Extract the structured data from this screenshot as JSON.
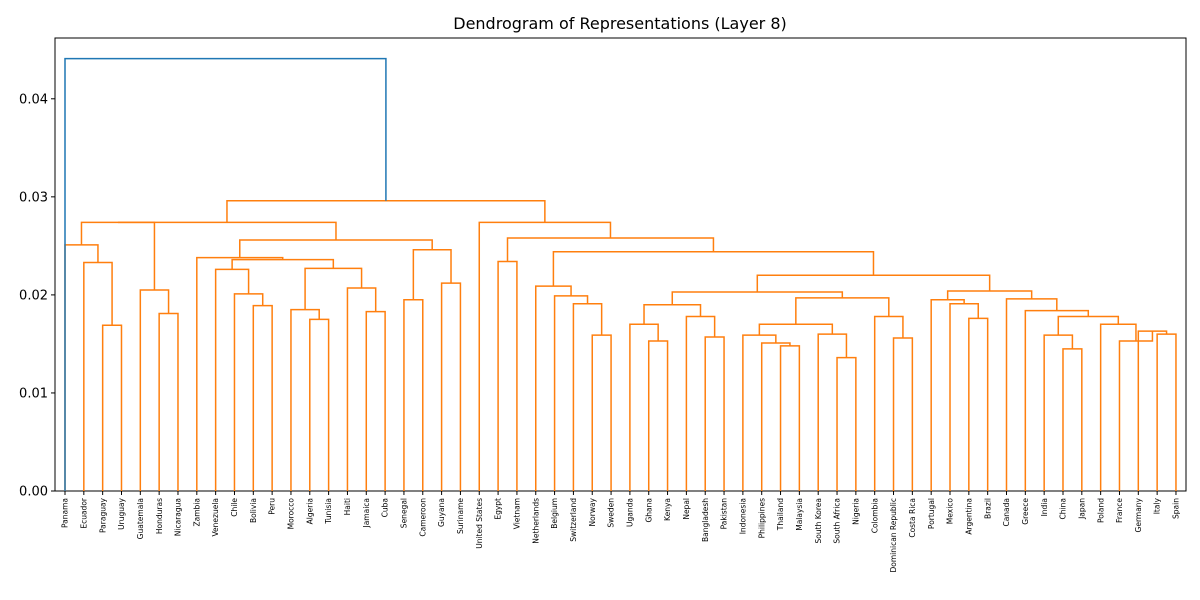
{
  "chart_data": {
    "type": "dendrogram",
    "title": "Dendrogram of Representations (Layer 8)",
    "xlabel": "",
    "ylabel": "",
    "ylim": [
      0,
      0.0462
    ],
    "yticks": [
      "0.00",
      "0.01",
      "0.02",
      "0.03",
      "0.04"
    ],
    "ytick_values": [
      0,
      0.01,
      0.02,
      0.03,
      0.04
    ],
    "colors": {
      "root": "#1f77b4",
      "cluster": "#ff7f0e"
    },
    "leaves": [
      "Panama",
      "Ecuador",
      "Paraguay",
      "Uruguay",
      "Guatemala",
      "Honduras",
      "Nicaragua",
      "Zambia",
      "Venezuela",
      "Chile",
      "Bolivia",
      "Peru",
      "Morocco",
      "Algeria",
      "Tunisia",
      "Haiti",
      "Jamaica",
      "Cuba",
      "Senegal",
      "Cameroon",
      "Guyana",
      "Suriname",
      "United States",
      "Egypt",
      "Vietnam",
      "Netherlands",
      "Belgium",
      "Switzerland",
      "Norway",
      "Sweden",
      "Uganda",
      "Ghana",
      "Kenya",
      "Nepal",
      "Bangladesh",
      "Pakistan",
      "Indonesia",
      "Philippines",
      "Thailand",
      "Malaysia",
      "South Korea",
      "South Africa",
      "Nigeria",
      "Colombia",
      "Dominican Republic",
      "Costa Rica",
      "Portugal",
      "Mexico",
      "Argentina",
      "Brazil",
      "Canada",
      "Greece",
      "India",
      "China",
      "Japan",
      "Poland",
      "France",
      "Germany",
      "Italy",
      "Spain"
    ],
    "merges": [
      {
        "l": 2,
        "r": 3,
        "h": 0.0169
      },
      {
        "l": 1,
        "r": "m0",
        "h": 0.0233
      },
      {
        "l": 5,
        "r": 6,
        "h": 0.0181
      },
      {
        "l": 4,
        "r": "m2",
        "h": 0.0205
      },
      {
        "l": 0,
        "r": "m1",
        "h": 0.0251
      },
      {
        "l": "m4",
        "r": "m3",
        "h": 0.0274
      },
      {
        "l": 10,
        "r": 11,
        "h": 0.0189
      },
      {
        "l": 9,
        "r": "m6",
        "h": 0.0201
      },
      {
        "l": 8,
        "r": "m7",
        "h": 0.0226
      },
      {
        "l": 13,
        "r": 14,
        "h": 0.0175
      },
      {
        "l": 12,
        "r": "m9",
        "h": 0.0185
      },
      {
        "l": 16,
        "r": 17,
        "h": 0.0183
      },
      {
        "l": 15,
        "r": "m11",
        "h": 0.0207
      },
      {
        "l": "m10",
        "r": "m12",
        "h": 0.0227
      },
      {
        "l": "m8",
        "r": "m13",
        "h": 0.0236
      },
      {
        "l": 7,
        "r": "m14",
        "h": 0.0238
      },
      {
        "l": 18,
        "r": 19,
        "h": 0.0195
      },
      {
        "l": 20,
        "r": 21,
        "h": 0.0212
      },
      {
        "l": "m16",
        "r": "m17",
        "h": 0.0246
      },
      {
        "l": "m15",
        "r": "m18",
        "h": 0.0256
      },
      {
        "l": "m5",
        "r": "m19",
        "h": 0.0274
      },
      {
        "l": 23,
        "r": 24,
        "h": 0.0234
      },
      {
        "l": 28,
        "r": 29,
        "h": 0.0159
      },
      {
        "l": 27,
        "r": "m22",
        "h": 0.0191
      },
      {
        "l": 26,
        "r": "m23",
        "h": 0.0199
      },
      {
        "l": 25,
        "r": "m24",
        "h": 0.0209
      },
      {
        "l": 31,
        "r": 32,
        "h": 0.0153
      },
      {
        "l": 30,
        "r": "m26",
        "h": 0.017
      },
      {
        "l": 34,
        "r": 35,
        "h": 0.0157
      },
      {
        "l": 33,
        "r": "m28",
        "h": 0.0178
      },
      {
        "l": "m27",
        "r": "m29",
        "h": 0.019
      },
      {
        "l": 38,
        "r": 39,
        "h": 0.0148
      },
      {
        "l": 37,
        "r": "m31",
        "h": 0.0151
      },
      {
        "l": 36,
        "r": "m32",
        "h": 0.0159
      },
      {
        "l": 41,
        "r": 42,
        "h": 0.0136
      },
      {
        "l": 40,
        "r": "m34",
        "h": 0.016
      },
      {
        "l": "m33",
        "r": "m35",
        "h": 0.017
      },
      {
        "l": 44,
        "r": 45,
        "h": 0.0156
      },
      {
        "l": 43,
        "r": "m37",
        "h": 0.0178
      },
      {
        "l": "m36",
        "r": "m38",
        "h": 0.0197
      },
      {
        "l": "m30",
        "r": "m39",
        "h": 0.0203
      },
      {
        "l": 48,
        "r": 49,
        "h": 0.0176
      },
      {
        "l": 47,
        "r": "m41",
        "h": 0.0191
      },
      {
        "l": 46,
        "r": "m42",
        "h": 0.0195
      },
      {
        "l": 53,
        "r": 54,
        "h": 0.0145
      },
      {
        "l": 52,
        "r": "m44",
        "h": 0.0159
      },
      {
        "l": 58,
        "r": 59,
        "h": 0.016
      },
      {
        "l": 57,
        "r": "m46",
        "h": 0.0163
      },
      {
        "l": 56,
        "r": "m47",
        "h": 0.0153
      },
      {
        "l": 55,
        "r": "m48",
        "h": 0.017
      },
      {
        "l": "m45",
        "r": "m49",
        "h": 0.0178
      },
      {
        "l": 51,
        "r": "m50",
        "h": 0.0184
      },
      {
        "l": 50,
        "r": "m51",
        "h": 0.0196
      },
      {
        "l": "m43",
        "r": "m52",
        "h": 0.0204
      },
      {
        "l": "m40",
        "r": "m53",
        "h": 0.022
      },
      {
        "l": "m25",
        "r": "m54",
        "h": 0.0244
      },
      {
        "l": "m21",
        "r": "m55",
        "h": 0.0258
      },
      {
        "l": 22,
        "r": "m56",
        "h": 0.0274
      },
      {
        "l": "m20",
        "r": "m57",
        "h": 0.0296
      },
      {
        "l": "root_left",
        "r": "m58",
        "h": 0.0441
      }
    ]
  }
}
